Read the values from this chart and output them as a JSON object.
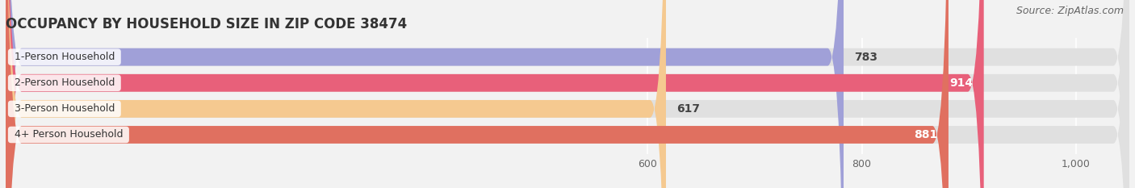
{
  "title": "OCCUPANCY BY HOUSEHOLD SIZE IN ZIP CODE 38474",
  "source": "Source: ZipAtlas.com",
  "categories": [
    "1-Person Household",
    "2-Person Household",
    "3-Person Household",
    "4+ Person Household"
  ],
  "values": [
    783,
    914,
    617,
    881
  ],
  "bar_colors": [
    "#a0a0d8",
    "#e8607a",
    "#f5c990",
    "#e07060"
  ],
  "label_colors": [
    "#444444",
    "#ffffff",
    "#444444",
    "#ffffff"
  ],
  "label_inside": [
    false,
    true,
    false,
    true
  ],
  "xlim": [
    0,
    1050
  ],
  "xticks": [
    600,
    800,
    1000
  ],
  "xtick_labels": [
    "600",
    "800",
    "1,000"
  ],
  "title_fontsize": 12,
  "source_fontsize": 9,
  "bar_label_fontsize": 10,
  "category_fontsize": 9,
  "background_color": "#f2f2f2",
  "bar_background_color": "#e0e0e0",
  "bar_height": 0.68,
  "rounding_size": 15
}
